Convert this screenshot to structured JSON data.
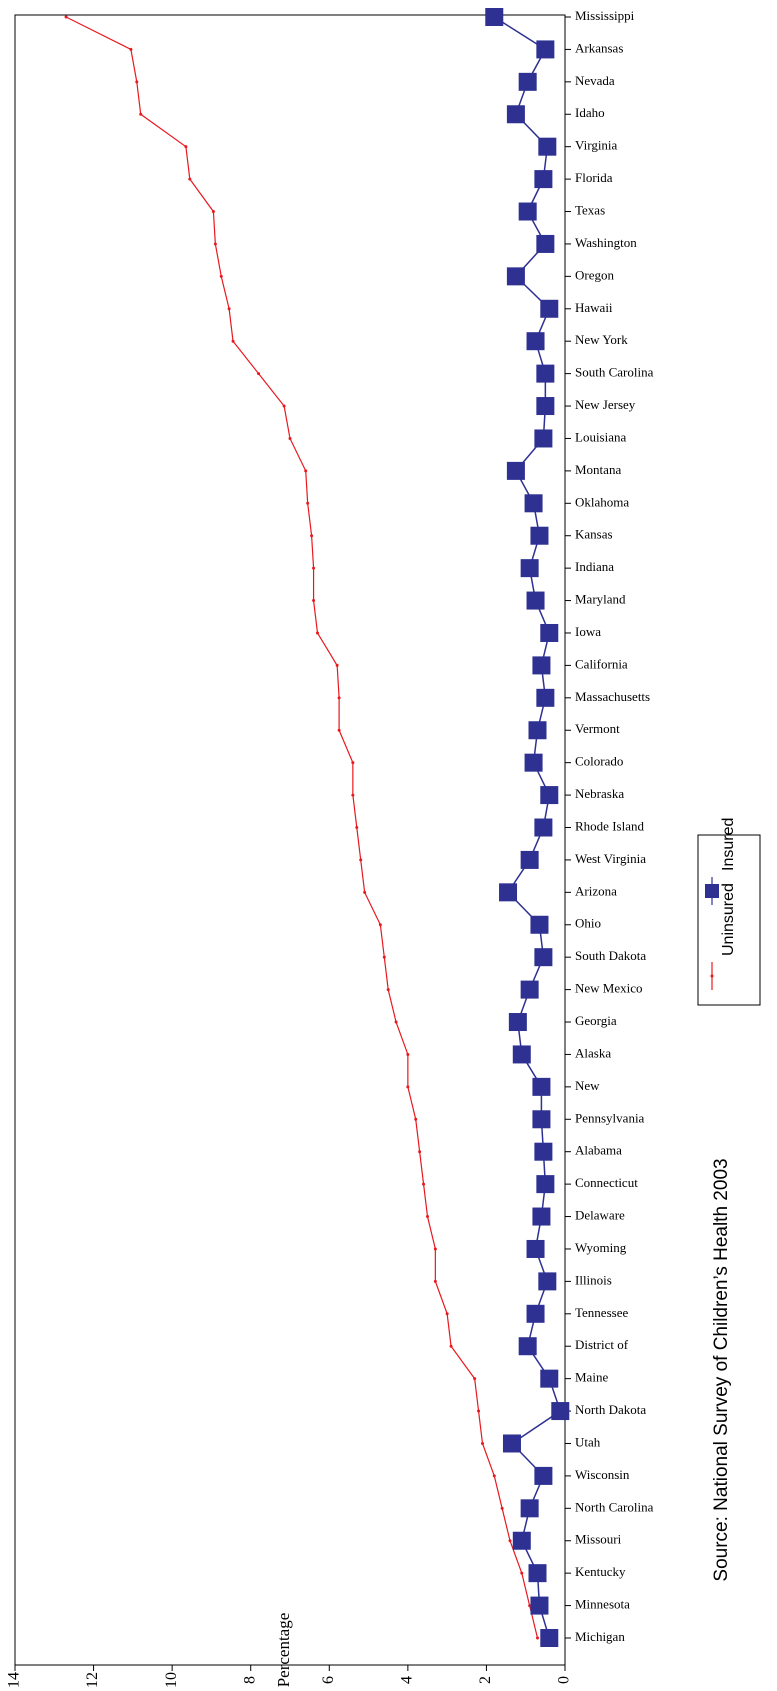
{
  "chart_data": {
    "type": "line",
    "y_label": "Percentage",
    "source": "Source: National Survey of Children’s Health 2003",
    "categories": [
      "Michigan",
      "Minnesota",
      "Kentucky",
      "Missouri",
      "North Carolina",
      "Wisconsin",
      "Utah",
      "North Dakota",
      "Maine",
      "District of",
      "Tennessee",
      "Illinois",
      "Wyoming",
      "Delaware",
      "Connecticut",
      "Alabama",
      "Pennsylvania",
      "New",
      "Alaska",
      "Georgia",
      "New Mexico",
      "South Dakota",
      "Ohio",
      "Arizona",
      "West Virginia",
      "Rhode Island",
      "Nebraska",
      "Colorado",
      "Vermont",
      "Massachusetts",
      "California",
      "Iowa",
      "Maryland",
      "Indiana",
      "Kansas",
      "Oklahoma",
      "Montana",
      "Louisiana",
      "New Jersey",
      "South Carolina",
      "New York",
      "Hawaii",
      "Oregon",
      "Washington",
      "Texas",
      "Florida",
      "Virginia",
      "Idaho",
      "Nevada",
      "Arkansas",
      "Mississippi"
    ],
    "series": [
      {
        "name": "Uninsured",
        "color": "#e8191e",
        "marker": "dot",
        "values": [
          0.7,
          0.9,
          1.1,
          1.4,
          1.6,
          1.8,
          2.1,
          2.2,
          2.3,
          2.9,
          3.0,
          3.3,
          3.3,
          3.5,
          3.6,
          3.7,
          3.8,
          4.0,
          4.0,
          4.3,
          4.5,
          4.6,
          4.7,
          5.1,
          5.2,
          5.3,
          5.4,
          5.4,
          5.75,
          5.75,
          5.8,
          6.3,
          6.4,
          6.4,
          6.45,
          6.55,
          6.6,
          7.0,
          7.15,
          7.8,
          8.45,
          8.55,
          8.75,
          8.9,
          8.95,
          9.55,
          9.65,
          10.8,
          10.9,
          11.05,
          12.7
        ]
      },
      {
        "name": "Insured",
        "color": "#2e3192",
        "marker": "square",
        "values": [
          0.4,
          0.65,
          0.7,
          1.1,
          0.9,
          0.55,
          1.35,
          0.12,
          0.4,
          0.95,
          0.75,
          0.45,
          0.75,
          0.6,
          0.5,
          0.55,
          0.6,
          0.6,
          1.1,
          1.2,
          0.9,
          0.55,
          0.65,
          1.45,
          0.9,
          0.55,
          0.4,
          0.8,
          0.7,
          0.5,
          0.6,
          0.4,
          0.75,
          0.9,
          0.65,
          0.8,
          1.25,
          0.55,
          0.5,
          0.5,
          0.75,
          0.4,
          1.25,
          0.5,
          0.95,
          0.55,
          0.45,
          1.25,
          0.95,
          0.5,
          1.8
        ]
      }
    ],
    "ylim": [
      0,
      14
    ],
    "yticks": [
      0,
      2,
      4,
      6,
      8,
      10,
      12,
      14
    ]
  }
}
